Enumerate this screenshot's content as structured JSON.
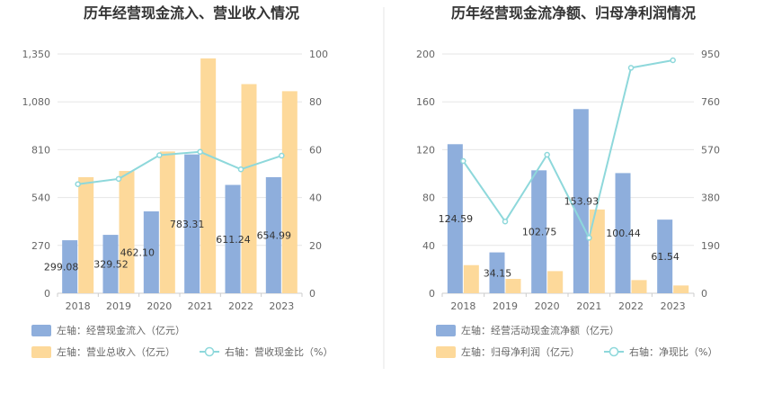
{
  "chart_data": [
    {
      "type": "bar",
      "title": "历年经营现金流入、营业收入情况",
      "categories": [
        "2018",
        "2019",
        "2020",
        "2021",
        "2022",
        "2023"
      ],
      "y_left": {
        "ticks": [
          "0",
          "270",
          "540",
          "810",
          "1,080",
          "1,350"
        ],
        "range": [
          0,
          1350
        ]
      },
      "y_right": {
        "ticks": [
          "0",
          "20",
          "40",
          "60",
          "80",
          "100"
        ],
        "range": [
          0,
          100
        ]
      },
      "series": [
        {
          "name": "左轴：经营现金流入（亿元）",
          "type": "bar",
          "axis": "left",
          "color": "#8eaedc",
          "values": [
            299.08,
            329.52,
            462.1,
            783.31,
            611.24,
            654.99
          ],
          "labels": [
            "299.08",
            "329.52",
            "462.10",
            "783.31",
            "611.24",
            "654.99"
          ]
        },
        {
          "name": "左轴：营业总收入（亿元）",
          "type": "bar",
          "axis": "left",
          "color": "#fdd99a",
          "values": [
            655,
            690,
            800,
            1325,
            1180,
            1140
          ]
        },
        {
          "name": "右轴：营收现金比（%）",
          "type": "line",
          "axis": "right",
          "color": "#8ed8db",
          "values": [
            45.6,
            47.8,
            57.7,
            59.1,
            51.8,
            57.5
          ]
        }
      ],
      "legend_position": "bottom"
    },
    {
      "type": "bar",
      "title": "历年经营现金流净额、归母净利润情况",
      "categories": [
        "2018",
        "2019",
        "2020",
        "2021",
        "2022",
        "2023"
      ],
      "y_left": {
        "ticks": [
          "0",
          "40",
          "80",
          "120",
          "160",
          "200"
        ],
        "range": [
          0,
          200
        ]
      },
      "y_right": {
        "ticks": [
          "0",
          "190",
          "380",
          "570",
          "760",
          "950"
        ],
        "range": [
          0,
          950
        ]
      },
      "series": [
        {
          "name": "左轴：经营活动现金流净额（亿元）",
          "type": "bar",
          "axis": "left",
          "color": "#8eaedc",
          "values": [
            124.59,
            34.15,
            102.75,
            153.93,
            100.44,
            61.54
          ],
          "labels": [
            "124.59",
            "34.15",
            "102.75",
            "153.93",
            "100.44",
            "61.54"
          ]
        },
        {
          "name": "左轴：归母净利润（亿元）",
          "type": "bar",
          "axis": "left",
          "color": "#fdd99a",
          "values": [
            23.5,
            12.0,
            18.5,
            70.0,
            11.0,
            6.5
          ]
        },
        {
          "name": "右轴：净现比（%）",
          "type": "line",
          "axis": "right",
          "color": "#8ed8db",
          "values": [
            525,
            285,
            550,
            220,
            895,
            925
          ]
        }
      ],
      "legend_position": "bottom"
    }
  ]
}
